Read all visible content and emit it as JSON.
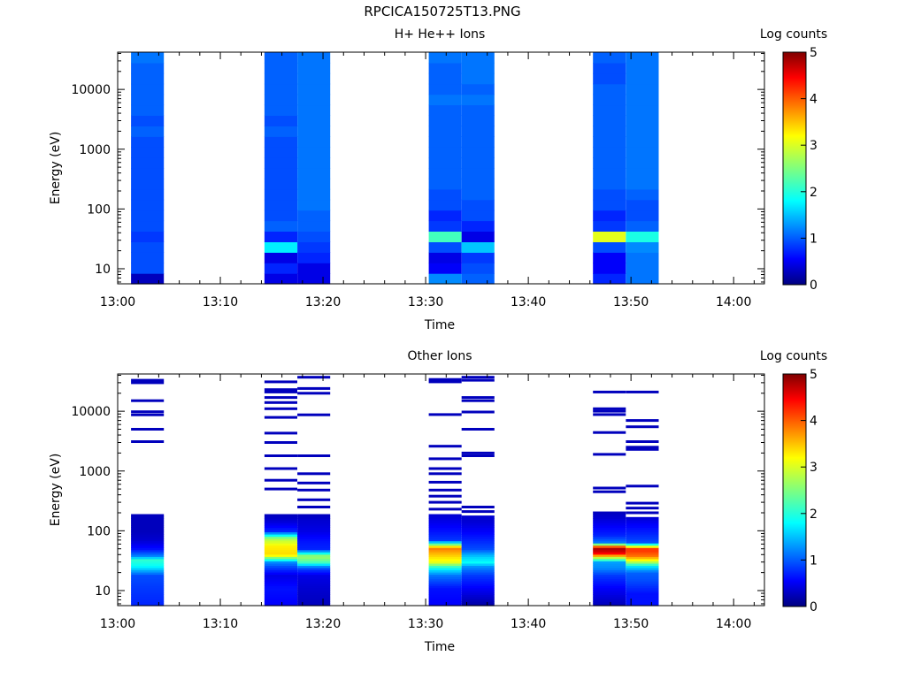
{
  "figure": {
    "title": "RPCICA150725T13.PNG"
  },
  "colors": {
    "axis": "#000000",
    "background": "#ffffff"
  },
  "chart_data": [
    {
      "type": "heatmap",
      "title": "H+ He++ Ions",
      "xlabel": "Time",
      "ylabel": "Energy (eV)",
      "x_ticks": [
        "13:00",
        "13:10",
        "13:20",
        "13:30",
        "13:40",
        "13:50",
        "14:00"
      ],
      "x_range_minutes": [
        0,
        63
      ],
      "y_scale": "log",
      "y_range": [
        5.6,
        42000
      ],
      "y_ticks": [
        "10",
        "100",
        "1000",
        "10000"
      ],
      "colorbar": {
        "label": "Log counts",
        "range": [
          0,
          5
        ],
        "ticks": [
          "0",
          "1",
          "2",
          "3",
          "4",
          "5"
        ],
        "colormap": "jet"
      },
      "time_blocks": [
        {
          "start_min": 1.3,
          "end_min": 4.5,
          "profile": [
            0.3,
            1.0,
            1.0,
            1.0,
            0.9,
            1.0,
            1.0,
            1.0,
            1.0,
            1.0,
            1.0,
            1.0,
            1.0,
            1.0,
            1.1,
            1.0,
            1.1,
            1.1,
            1.1,
            1.1,
            1.1,
            1.2
          ]
        },
        {
          "start_min": 14.3,
          "end_min": 17.5,
          "profile": [
            0.5,
            0.8,
            0.5,
            1.8,
            0.8,
            1.1,
            1.0,
            1.0,
            1.0,
            1.0,
            1.0,
            1.0,
            1.0,
            1.0,
            1.1,
            1.0,
            1.1,
            1.1,
            1.1,
            1.1,
            1.1,
            1.1
          ]
        },
        {
          "start_min": 17.5,
          "end_min": 20.7,
          "profile": [
            0.5,
            0.5,
            0.8,
            0.9,
            1.0,
            1.1,
            1.1,
            1.2,
            1.2,
            1.2,
            1.2,
            1.2,
            1.2,
            1.2,
            1.2,
            1.2,
            1.2,
            1.2,
            1.2,
            1.2,
            1.2,
            1.2
          ]
        },
        {
          "start_min": 30.3,
          "end_min": 33.5,
          "profile": [
            1.3,
            0.6,
            0.5,
            1.0,
            2.2,
            0.9,
            0.8,
            1.0,
            1.0,
            1.1,
            1.1,
            1.1,
            1.1,
            1.1,
            1.1,
            1.1,
            1.1,
            1.2,
            1.1,
            1.1,
            1.1,
            1.2
          ]
        },
        {
          "start_min": 33.5,
          "end_min": 36.7,
          "profile": [
            1.1,
            1.0,
            0.9,
            1.6,
            0.5,
            0.8,
            1.0,
            1.0,
            1.1,
            1.1,
            1.1,
            1.1,
            1.1,
            1.1,
            1.1,
            1.1,
            1.1,
            1.2,
            1.1,
            1.2,
            1.2,
            1.2
          ]
        },
        {
          "start_min": 46.3,
          "end_min": 49.5,
          "profile": [
            0.8,
            0.6,
            0.6,
            1.0,
            3.0,
            0.9,
            0.8,
            1.0,
            1.0,
            1.1,
            1.1,
            1.1,
            1.1,
            1.1,
            1.1,
            1.1,
            1.1,
            1.1,
            1.1,
            1.0,
            1.0,
            1.1
          ]
        },
        {
          "start_min": 49.5,
          "end_min": 52.7,
          "profile": [
            1.2,
            1.2,
            1.2,
            1.3,
            2.0,
            1.1,
            1.0,
            1.0,
            1.1,
            1.2,
            1.2,
            1.2,
            1.2,
            1.2,
            1.2,
            1.2,
            1.2,
            1.2,
            1.2,
            1.2,
            1.2,
            1.2
          ]
        }
      ]
    },
    {
      "type": "heatmap",
      "title": "Other Ions",
      "xlabel": "Time",
      "ylabel": "Energy (eV)",
      "x_ticks": [
        "13:00",
        "13:10",
        "13:20",
        "13:30",
        "13:40",
        "13:50",
        "14:00"
      ],
      "x_range_minutes": [
        0,
        63
      ],
      "y_scale": "log",
      "y_range": [
        5.6,
        42000
      ],
      "y_ticks": [
        "10",
        "100",
        "1000",
        "10000"
      ],
      "colorbar": {
        "label": "Log counts",
        "range": [
          0,
          5
        ],
        "ticks": [
          "0",
          "1",
          "2",
          "3",
          "4",
          "5"
        ],
        "colormap": "jet"
      },
      "time_blocks": [
        {
          "start_min": 1.3,
          "end_min": 4.5,
          "low_profile": [
            {
              "e": 6,
              "v": 0.8
            },
            {
              "e": 11,
              "v": 0.9
            },
            {
              "e": 18,
              "v": 1.0
            },
            {
              "e": 26,
              "v": 1.9
            },
            {
              "e": 33,
              "v": 2.1
            },
            {
              "e": 38,
              "v": 1.3
            },
            {
              "e": 50,
              "v": 0.7
            },
            {
              "e": 70,
              "v": 0.4
            },
            {
              "e": 100,
              "v": 0.3
            },
            {
              "e": 150,
              "v": 0.3
            },
            {
              "e": 190,
              "v": 0.3
            }
          ],
          "lines_eV": [
            3100,
            5000,
            8700,
            9800,
            15000,
            30000,
            33000
          ]
        },
        {
          "start_min": 14.3,
          "end_min": 17.5,
          "low_profile": [
            {
              "e": 6,
              "v": 0.6
            },
            {
              "e": 11,
              "v": 0.7
            },
            {
              "e": 18,
              "v": 0.5
            },
            {
              "e": 24,
              "v": 0.9
            },
            {
              "e": 30,
              "v": 1.3
            },
            {
              "e": 40,
              "v": 3.3
            },
            {
              "e": 55,
              "v": 3.2
            },
            {
              "e": 75,
              "v": 2.7
            },
            {
              "e": 100,
              "v": 0.8
            },
            {
              "e": 150,
              "v": 0.4
            },
            {
              "e": 190,
              "v": 0.3
            }
          ],
          "lines_eV": [
            500,
            700,
            1100,
            1800,
            3000,
            4300,
            7900,
            11000,
            14000,
            17000,
            21000,
            23000,
            31000
          ]
        },
        {
          "start_min": 17.5,
          "end_min": 20.7,
          "low_profile": [
            {
              "e": 6,
              "v": 0.3
            },
            {
              "e": 11,
              "v": 0.4
            },
            {
              "e": 18,
              "v": 0.5
            },
            {
              "e": 24,
              "v": 1.0
            },
            {
              "e": 30,
              "v": 2.2
            },
            {
              "e": 38,
              "v": 2.7
            },
            {
              "e": 50,
              "v": 0.8
            },
            {
              "e": 70,
              "v": 0.7
            },
            {
              "e": 100,
              "v": 0.5
            },
            {
              "e": 150,
              "v": 0.4
            },
            {
              "e": 190,
              "v": 0.3
            }
          ],
          "lines_eV": [
            250,
            330,
            480,
            630,
            900,
            1800,
            8700,
            20000,
            24000,
            37000
          ]
        },
        {
          "start_min": 30.3,
          "end_min": 33.5,
          "low_profile": [
            {
              "e": 6,
              "v": 0.6
            },
            {
              "e": 11,
              "v": 0.7
            },
            {
              "e": 18,
              "v": 1.2
            },
            {
              "e": 24,
              "v": 1.9
            },
            {
              "e": 30,
              "v": 3.0
            },
            {
              "e": 40,
              "v": 3.4
            },
            {
              "e": 52,
              "v": 3.8
            },
            {
              "e": 70,
              "v": 0.9
            },
            {
              "e": 100,
              "v": 0.7
            },
            {
              "e": 150,
              "v": 0.5
            },
            {
              "e": 190,
              "v": 0.4
            }
          ],
          "lines_eV": [
            230,
            300,
            380,
            480,
            650,
            900,
            1100,
            1600,
            2600,
            8800,
            31000,
            34000
          ]
        },
        {
          "start_min": 33.5,
          "end_min": 36.7,
          "low_profile": [
            {
              "e": 6,
              "v": 0.2
            },
            {
              "e": 11,
              "v": 0.6
            },
            {
              "e": 18,
              "v": 0.9
            },
            {
              "e": 25,
              "v": 1.3
            },
            {
              "e": 30,
              "v": 1.9
            },
            {
              "e": 38,
              "v": 1.6
            },
            {
              "e": 50,
              "v": 1.0
            },
            {
              "e": 70,
              "v": 0.8
            },
            {
              "e": 100,
              "v": 0.6
            },
            {
              "e": 150,
              "v": 0.4
            },
            {
              "e": 180,
              "v": 0.4
            }
          ],
          "lines_eV": [
            210,
            250,
            1800,
            2000,
            5000,
            9700,
            15000,
            17000,
            33000,
            37000
          ]
        },
        {
          "start_min": 46.3,
          "end_min": 49.5,
          "low_profile": [
            {
              "e": 6,
              "v": 0.3
            },
            {
              "e": 11,
              "v": 0.6
            },
            {
              "e": 18,
              "v": 0.9
            },
            {
              "e": 24,
              "v": 1.3
            },
            {
              "e": 30,
              "v": 1.4
            },
            {
              "e": 37,
              "v": 3.1
            },
            {
              "e": 43,
              "v": 4.5
            },
            {
              "e": 52,
              "v": 4.8
            },
            {
              "e": 65,
              "v": 1.2
            },
            {
              "e": 85,
              "v": 0.8
            },
            {
              "e": 120,
              "v": 0.6
            },
            {
              "e": 170,
              "v": 0.4
            },
            {
              "e": 210,
              "v": 0.3
            }
          ],
          "lines_eV": [
            450,
            520,
            1900,
            4400,
            8800,
            10000,
            11000,
            21000
          ]
        },
        {
          "start_min": 49.5,
          "end_min": 52.7,
          "low_profile": [
            {
              "e": 9,
              "v": 0.7
            },
            {
              "e": 15,
              "v": 1.0
            },
            {
              "e": 20,
              "v": 1.1
            },
            {
              "e": 26,
              "v": 1.8
            },
            {
              "e": 30,
              "v": 2.7
            },
            {
              "e": 38,
              "v": 3.8
            },
            {
              "e": 50,
              "v": 4.2
            },
            {
              "e": 65,
              "v": 1.0
            },
            {
              "e": 90,
              "v": 0.8
            },
            {
              "e": 130,
              "v": 0.6
            },
            {
              "e": 170,
              "v": 0.4
            }
          ],
          "lines_eV": [
            200,
            240,
            290,
            560,
            2300,
            2500,
            3100,
            5500,
            7000,
            21000
          ]
        }
      ]
    }
  ]
}
